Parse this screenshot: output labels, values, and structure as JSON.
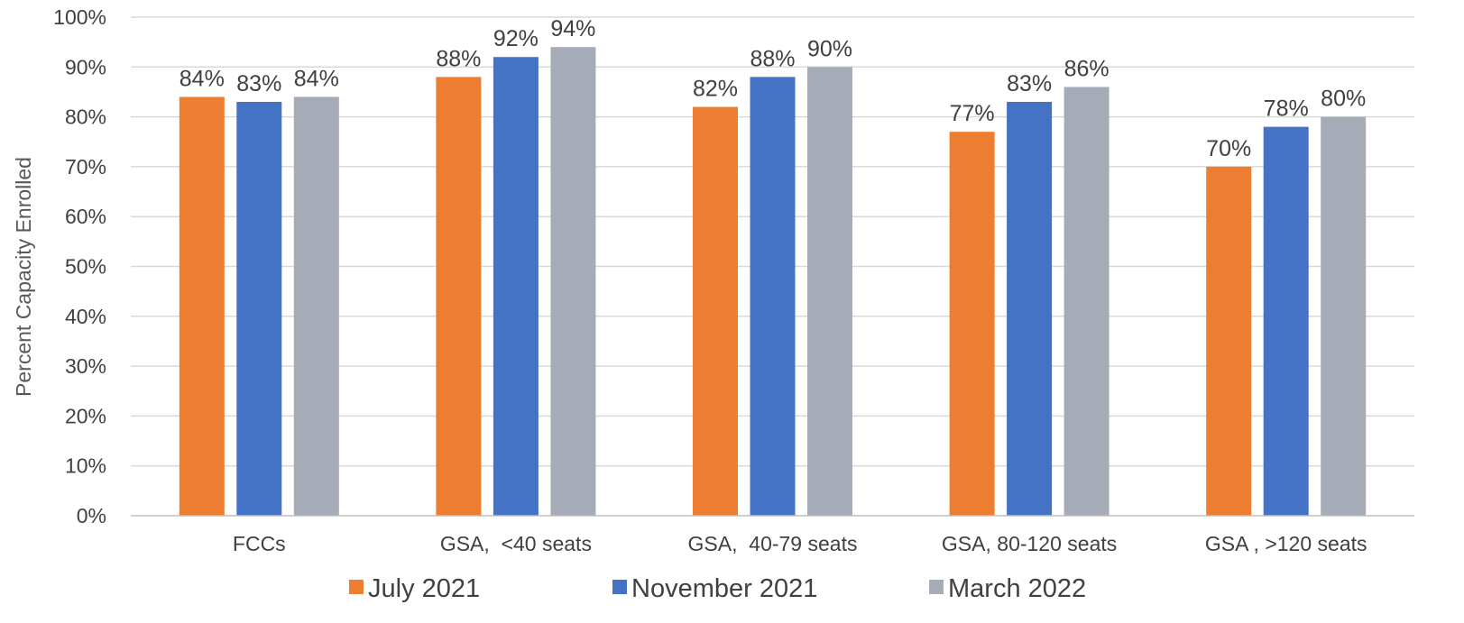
{
  "chart_data": {
    "type": "bar",
    "title": "",
    "xlabel": "",
    "ylabel": "Percent Capacity Enrolled",
    "ylim": [
      0,
      100
    ],
    "yticks": [
      "0%",
      "10%",
      "20%",
      "30%",
      "40%",
      "50%",
      "60%",
      "70%",
      "80%",
      "90%",
      "100%"
    ],
    "categories": [
      "FCCs",
      "GSA,  <40 seats",
      "GSA,  40-79 seats",
      "GSA, 80-120 seats",
      "GSA , >120 seats"
    ],
    "series": [
      {
        "name": "July 2021",
        "color": "#ed7d31",
        "values": [
          84,
          88,
          82,
          77,
          70
        ],
        "labels": [
          "84%",
          "88%",
          "82%",
          "77%",
          "70%"
        ]
      },
      {
        "name": "November 2021",
        "color": "#4472c4",
        "values": [
          83,
          92,
          88,
          83,
          78
        ],
        "labels": [
          "83%",
          "92%",
          "88%",
          "83%",
          "78%"
        ]
      },
      {
        "name": "March 2022",
        "color": "#a5acb7",
        "values": [
          84,
          94,
          90,
          86,
          80
        ],
        "labels": [
          "84%",
          "94%",
          "90%",
          "86%",
          "80%"
        ]
      }
    ],
    "grid": true,
    "legend_position": "bottom"
  }
}
